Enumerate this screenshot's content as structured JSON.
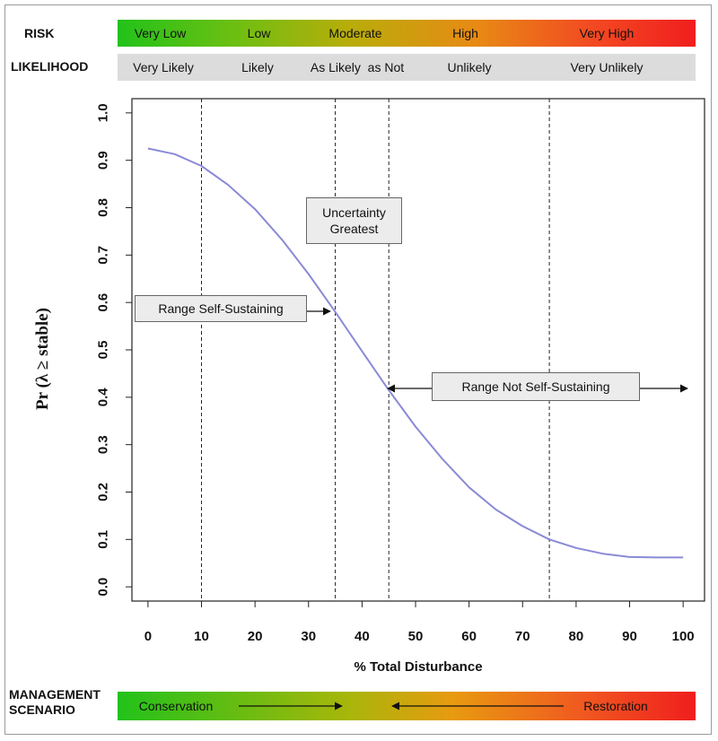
{
  "risk_row": {
    "label": "RISK",
    "segments": [
      "Very Low",
      "Low",
      "Moderate",
      "High",
      "Very High"
    ]
  },
  "likelihood_row": {
    "label": "LIKELIHOOD",
    "segments": [
      "Very Likely",
      "Likely",
      "As Likely  as Not",
      "Unlikely",
      "Very Unlikely"
    ]
  },
  "management": {
    "label_line1": "MANAGEMENT",
    "label_line2": "SCENARIO",
    "left": "Conservation",
    "right": "Restoration"
  },
  "callouts": {
    "uncertainty": "Uncertainty Greatest",
    "self_sustaining": "Range Self-Sustaining",
    "not_self_sustaining": "Range Not Self-Sustaining"
  },
  "colors": {
    "curve": "#8a8ad6",
    "risk_start": "#22c21a",
    "risk_end": "#f01e1e"
  },
  "chart_data": {
    "type": "line",
    "title": "",
    "xlabel": "% Total Disturbance",
    "ylabel": "Pr (λ ≥ stable)",
    "xlim": [
      -3,
      104
    ],
    "ylim": [
      -0.03,
      1.03
    ],
    "xticks": [
      0,
      10,
      20,
      30,
      40,
      50,
      60,
      70,
      80,
      90,
      100
    ],
    "yticks": [
      0.0,
      0.1,
      0.2,
      0.3,
      0.4,
      0.5,
      0.6,
      0.7,
      0.8,
      0.9,
      1.0
    ],
    "ytick_labels": [
      "0.0",
      "0.1",
      "0.2",
      "0.3",
      "0.4",
      "0.5",
      "0.6",
      "0.7",
      "0.8",
      "0.9",
      "1.0"
    ],
    "vlines": [
      10,
      35,
      45,
      75
    ],
    "grid": false,
    "series": [
      {
        "x": [
          0,
          5,
          10,
          15,
          20,
          25,
          30,
          35,
          40,
          45,
          50,
          55,
          60,
          65,
          70,
          75,
          80,
          85,
          90,
          95,
          100
        ],
        "values": [
          0.925,
          0.913,
          0.888,
          0.848,
          0.797,
          0.733,
          0.66,
          0.58,
          0.497,
          0.415,
          0.338,
          0.27,
          0.21,
          0.163,
          0.128,
          0.1,
          0.082,
          0.07,
          0.063,
          0.062,
          0.062
        ]
      }
    ]
  }
}
